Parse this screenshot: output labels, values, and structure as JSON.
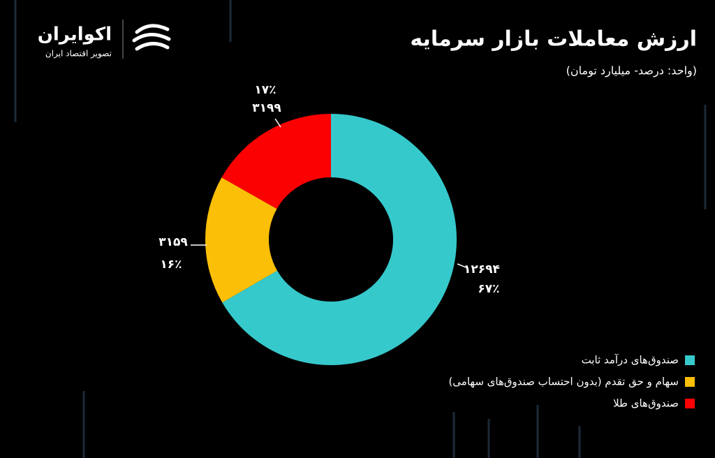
{
  "brand": {
    "name": "اکوایران",
    "tagline": "تصویر اقتصاد ایران"
  },
  "chart_data": {
    "type": "donut",
    "title": "ارزش معاملات بازار سرمایه",
    "subtitle": "(واحد: درصد- میلیارد تومان)",
    "categories": [
      "صندوق‌های درآمد ثابت",
      "سهام و حق تقدم (بدون احتساب صندوق‌های سهامی)",
      "صندوق‌های طلا"
    ],
    "colors": [
      "#36c9cc",
      "#fbbf08",
      "#fb0102"
    ],
    "values": [
      12694,
      3159,
      3199
    ],
    "value_labels": [
      "۱۲۶۹۴",
      "۳۱۵۹",
      "۳۱۹۹"
    ],
    "percents": [
      67,
      16,
      17
    ],
    "percent_labels": [
      "۶۷٪",
      "۱۶٪",
      "۱۷٪"
    ]
  }
}
